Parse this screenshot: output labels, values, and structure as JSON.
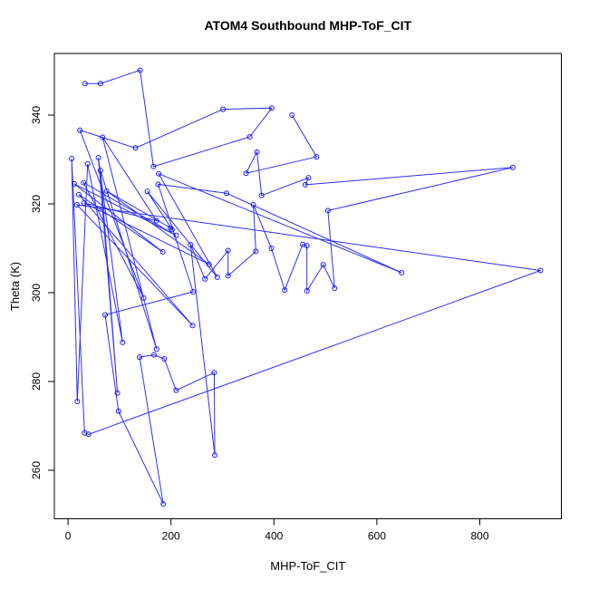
{
  "chart_data": {
    "type": "line",
    "title": "ATOM4 Southbound MHP-ToF_CIT",
    "xlabel": "MHP-ToF_CIT",
    "ylabel": "Theta (K)",
    "x_ticks": [
      0,
      200,
      400,
      600,
      800
    ],
    "y_ticks": [
      260,
      280,
      300,
      320,
      340
    ],
    "xlim": [
      -27,
      958
    ],
    "ylim": [
      249,
      354
    ],
    "grid": false,
    "legend": "none",
    "marker": "open-circle",
    "line_color": "#0000FF",
    "box_color": "#000000",
    "connected_in_order": true,
    "points": [
      [
        33,
        347.1
      ],
      [
        63,
        347.1
      ],
      [
        140,
        350.1
      ],
      [
        166,
        328.4
      ],
      [
        353,
        335.1
      ],
      [
        396,
        341.6
      ],
      [
        301,
        341.3
      ],
      [
        131,
        332.6
      ],
      [
        23,
        336.6
      ],
      [
        147,
        298.8
      ],
      [
        30,
        324.8
      ],
      [
        210,
        312.9
      ],
      [
        12,
        324.5
      ],
      [
        184,
        309.2
      ],
      [
        21,
        322.1
      ],
      [
        242,
        292.6
      ],
      [
        17,
        319.8
      ],
      [
        918,
        305.0
      ],
      [
        40,
        268.1
      ],
      [
        32,
        268.4
      ],
      [
        7,
        330.2
      ],
      [
        18,
        275.5
      ],
      [
        38,
        329.0
      ],
      [
        106,
        288.8
      ],
      [
        59,
        330.4
      ],
      [
        96,
        277.4
      ],
      [
        63,
        327.5
      ],
      [
        172,
        287.3
      ],
      [
        67,
        335.0
      ],
      [
        172,
        316.2
      ],
      [
        31,
        320.2
      ],
      [
        274,
        306.4
      ],
      [
        75,
        322.9
      ],
      [
        199,
        314.6
      ],
      [
        202,
        314.2
      ],
      [
        154,
        322.8
      ],
      [
        290,
        303.5
      ],
      [
        176,
        326.8
      ],
      [
        648,
        304.5
      ],
      [
        308,
        322.4
      ],
      [
        175,
        324.4
      ],
      [
        243,
        300.2
      ],
      [
        72,
        295.0
      ],
      [
        98,
        273.3
      ],
      [
        185,
        252.4
      ],
      [
        139,
        285.5
      ],
      [
        167,
        286.0
      ],
      [
        187,
        285.1
      ],
      [
        210,
        278.0
      ],
      [
        284,
        282.0
      ],
      [
        285,
        263.4
      ],
      [
        238,
        310.8
      ],
      [
        266,
        303.1
      ],
      [
        311,
        309.5
      ],
      [
        311,
        303.8
      ],
      [
        365,
        309.3
      ],
      [
        360,
        319.8
      ],
      [
        395,
        310.0
      ],
      [
        421,
        300.6
      ],
      [
        456,
        310.9
      ],
      [
        464,
        310.6
      ],
      [
        464,
        300.4
      ],
      [
        496,
        306.3
      ],
      [
        518,
        301.0
      ],
      [
        505,
        318.5
      ],
      [
        864,
        328.2
      ],
      [
        461,
        324.3
      ],
      [
        467,
        325.9
      ],
      [
        376,
        321.9
      ],
      [
        367,
        331.7
      ],
      [
        346,
        326.9
      ],
      [
        483,
        330.6
      ],
      [
        435,
        340.0
      ]
    ]
  }
}
